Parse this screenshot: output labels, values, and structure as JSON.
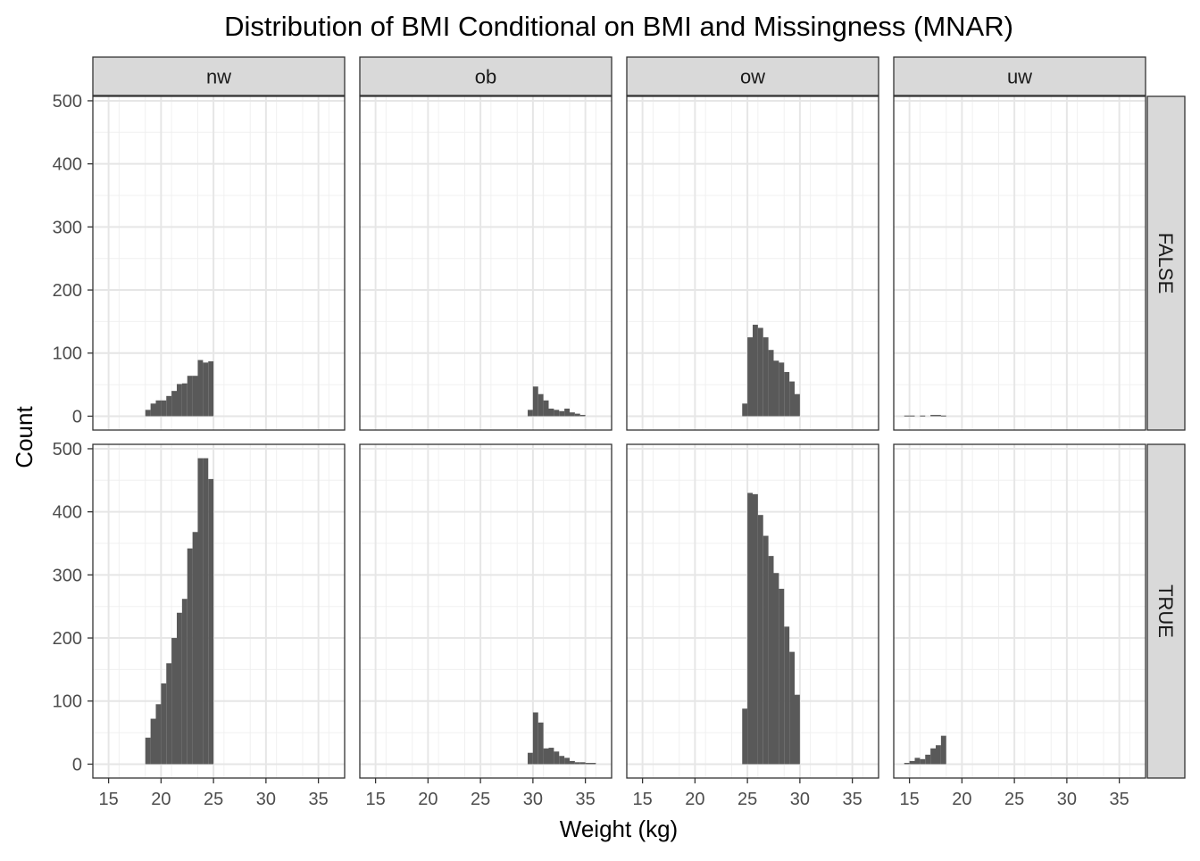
{
  "chart_data": {
    "type": "bar",
    "title": "Distribution of BMI Conditional on BMI and Missingness (MNAR)",
    "xlabel": "Weight (kg)",
    "ylabel": "Count",
    "xlim": [
      13.5,
      37.5
    ],
    "ylim": [
      -22,
      507
    ],
    "x_ticks": [
      15,
      20,
      25,
      30,
      35
    ],
    "y_ticks": [
      0,
      100,
      200,
      300,
      400,
      500
    ],
    "grid": true,
    "bin_width": 0.5,
    "bar_color": "#595959",
    "column_facets": [
      "nw",
      "ob",
      "ow",
      "uw"
    ],
    "row_facets": [
      "FALSE",
      "TRUE"
    ],
    "panels": [
      {
        "col": "nw",
        "row": "FALSE",
        "bin_starts": [
          18.5,
          19,
          19.5,
          20,
          20.5,
          21,
          21.5,
          22,
          22.5,
          23,
          23.5,
          24,
          24.5
        ],
        "counts": [
          10,
          20,
          25,
          25,
          32,
          40,
          51,
          52,
          64,
          64,
          89,
          85,
          87
        ]
      },
      {
        "col": "ob",
        "row": "FALSE",
        "bin_starts": [
          29.5,
          30,
          30.5,
          31,
          31.5,
          32,
          32.5,
          33,
          33.5,
          34,
          34.5
        ],
        "counts": [
          10,
          47,
          35,
          25,
          12,
          10,
          8,
          12,
          6,
          4,
          2
        ]
      },
      {
        "col": "ow",
        "row": "FALSE",
        "bin_starts": [
          24.5,
          25,
          25.5,
          26,
          26.5,
          27,
          27.5,
          28,
          28.5,
          29,
          29.5
        ],
        "counts": [
          20,
          125,
          145,
          140,
          125,
          105,
          88,
          85,
          70,
          55,
          35
        ]
      },
      {
        "col": "uw",
        "row": "FALSE",
        "bin_starts": [
          14.5,
          15,
          15.5,
          16,
          16.5,
          17,
          17.5,
          18
        ],
        "counts": [
          1,
          1,
          0,
          1,
          0,
          2,
          2,
          1
        ]
      },
      {
        "col": "nw",
        "row": "TRUE",
        "bin_starts": [
          18.5,
          19,
          19.5,
          20,
          20.5,
          21,
          21.5,
          22,
          22.5,
          23,
          23.5,
          24,
          24.5
        ],
        "counts": [
          42,
          72,
          95,
          128,
          160,
          200,
          240,
          262,
          342,
          368,
          485,
          485,
          452
        ]
      },
      {
        "col": "ob",
        "row": "TRUE",
        "bin_starts": [
          29.5,
          30,
          30.5,
          31,
          31.5,
          32,
          32.5,
          33,
          33.5,
          34,
          34.5,
          35,
          35.5
        ],
        "counts": [
          18,
          82,
          66,
          25,
          26,
          20,
          13,
          10,
          5,
          3,
          3,
          2,
          2
        ]
      },
      {
        "col": "ow",
        "row": "TRUE",
        "bin_starts": [
          24.5,
          25,
          25.5,
          26,
          26.5,
          27,
          27.5,
          28,
          28.5,
          29,
          29.5
        ],
        "counts": [
          88,
          430,
          428,
          395,
          362,
          330,
          303,
          278,
          218,
          178,
          110
        ]
      },
      {
        "col": "uw",
        "row": "TRUE",
        "bin_starts": [
          14.5,
          15,
          15.5,
          16,
          16.5,
          17,
          17.5,
          18
        ],
        "counts": [
          2,
          5,
          10,
          8,
          15,
          25,
          30,
          45
        ]
      }
    ]
  }
}
